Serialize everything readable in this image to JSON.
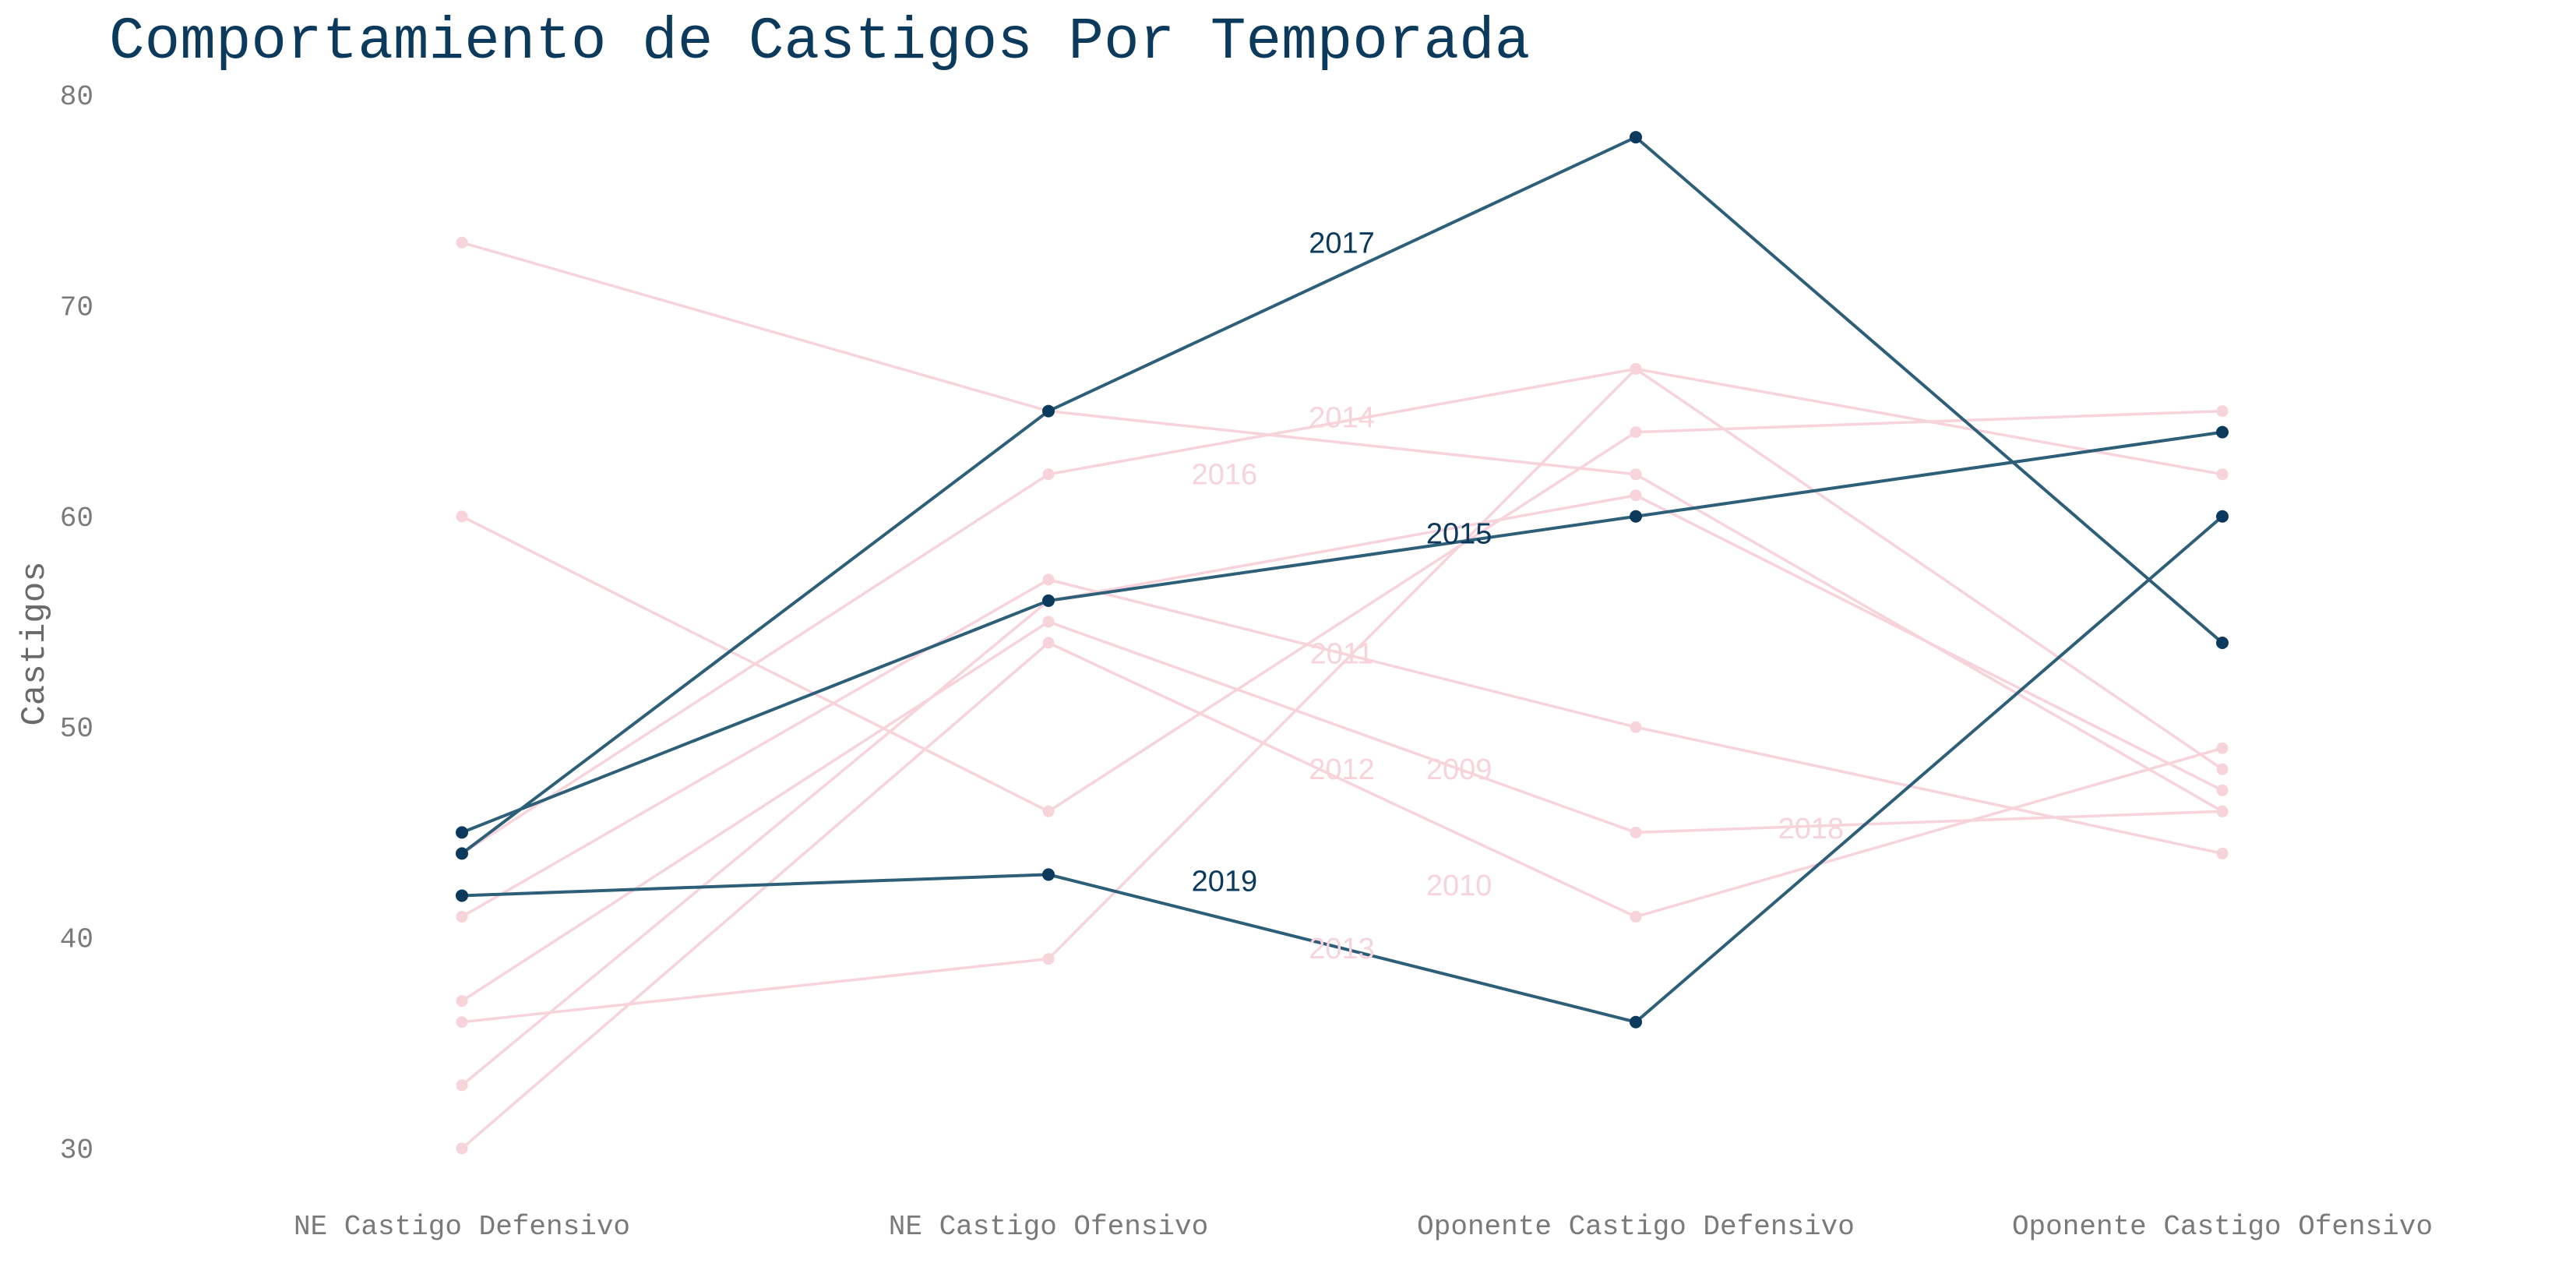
{
  "chart_data": {
    "type": "line",
    "title": "Comportamiento de Castigos Por Temporada",
    "xlabel": "",
    "ylabel": "Castigos",
    "categories": [
      "NE Castigo Defensivo",
      "NE Castigo Ofensivo",
      "Oponente Castigo Defensivo",
      "Oponente Castigo Ofensivo"
    ],
    "ylim": [
      28,
      80
    ],
    "yticks": [
      "30",
      "40",
      "50",
      "60",
      "70",
      "80"
    ],
    "grid": false,
    "legend": "none",
    "highlight_color": "#2d5f78",
    "highlight_point_color": "#0b3a5c",
    "highlight_label_color": "#0b3a5c",
    "muted_color": "#f7d3dc",
    "series": [
      {
        "name": "2009",
        "values": [
          73,
          65,
          62,
          46
        ],
        "highlight": false,
        "label_x": 2.7,
        "label_y": 48
      },
      {
        "name": "2010",
        "values": [
          60,
          46,
          64,
          65
        ],
        "highlight": false,
        "label_x": 2.7,
        "label_y": 42.5
      },
      {
        "name": "2011",
        "values": [
          41,
          57,
          50,
          44
        ],
        "highlight": false,
        "label_x": 2.5,
        "label_y": 53.5
      },
      {
        "name": "2012",
        "values": [
          37,
          55,
          45,
          46
        ],
        "highlight": false,
        "label_x": 2.5,
        "label_y": 48
      },
      {
        "name": "2013",
        "values": [
          36,
          39,
          67,
          48
        ],
        "highlight": false,
        "label_x": 2.5,
        "label_y": 39.5
      },
      {
        "name": "2014",
        "values": [
          44,
          62,
          67,
          62
        ],
        "highlight": false,
        "label_x": 2.5,
        "label_y": 64.7
      },
      {
        "name": "2016",
        "values": [
          33,
          56,
          61,
          47
        ],
        "highlight": false,
        "label_x": 2.3,
        "label_y": 62
      },
      {
        "name": "2018",
        "values": [
          30,
          54,
          41,
          49
        ],
        "highlight": false,
        "label_x": 3.3,
        "label_y": 45.2
      },
      {
        "name": "2015",
        "values": [
          45,
          56,
          60,
          64
        ],
        "highlight": true,
        "label_x": 2.7,
        "label_y": 59.2
      },
      {
        "name": "2017",
        "values": [
          44,
          65,
          78,
          54
        ],
        "highlight": true,
        "label_x": 2.5,
        "label_y": 73
      },
      {
        "name": "2019",
        "values": [
          42,
          43,
          36,
          60
        ],
        "highlight": true,
        "label_x": 2.3,
        "label_y": 42.7
      }
    ]
  }
}
